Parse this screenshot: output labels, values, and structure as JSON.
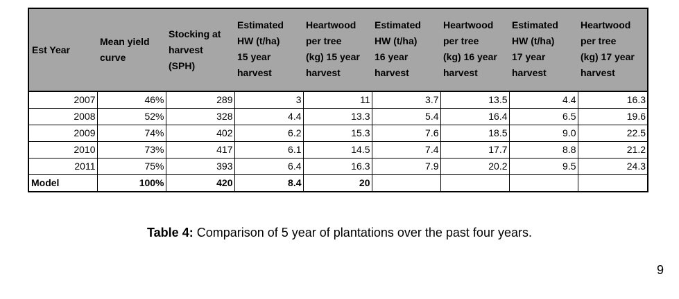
{
  "table": {
    "headers": [
      [
        "Est Year"
      ],
      [
        "Mean yield",
        "curve"
      ],
      [
        "Stocking at",
        "harvest",
        "(SPH)"
      ],
      [
        "Estimated",
        "HW (t/ha)",
        "15 year",
        "harvest"
      ],
      [
        "Heartwood",
        "per tree",
        "(kg) 15 year",
        "harvest"
      ],
      [
        "Estimated",
        "HW (t/ha)",
        "16 year",
        "harvest"
      ],
      [
        "Heartwood",
        "per tree",
        "(kg) 16 year",
        "harvest"
      ],
      [
        "Estimated",
        "HW (t/ha)",
        "17 year",
        "harvest"
      ],
      [
        "Heartwood",
        "per tree",
        "(kg) 17 year",
        "harvest"
      ]
    ],
    "rows": [
      [
        "2007",
        "46%",
        "289",
        "3",
        "11",
        "3.7",
        "13.5",
        "4.4",
        "16.3"
      ],
      [
        "2008",
        "52%",
        "328",
        "4.4",
        "13.3",
        "5.4",
        "16.4",
        "6.5",
        "19.6"
      ],
      [
        "2009",
        "74%",
        "402",
        "6.2",
        "15.3",
        "7.6",
        "18.5",
        "9.0",
        "22.5"
      ],
      [
        "2010",
        "73%",
        "417",
        "6.1",
        "14.5",
        "7.4",
        "17.7",
        "8.8",
        "21.2"
      ],
      [
        "2011",
        "75%",
        "393",
        "6.4",
        "16.3",
        "7.9",
        "20.2",
        "9.5",
        "24.3"
      ]
    ],
    "model_row": [
      "Model",
      "100%",
      "420",
      "8.4",
      "20",
      "",
      "",
      "",
      ""
    ]
  },
  "caption": {
    "label": "Table 4:",
    "text": " Comparison of 5 year of plantations over the past four years."
  },
  "page_number": "9"
}
